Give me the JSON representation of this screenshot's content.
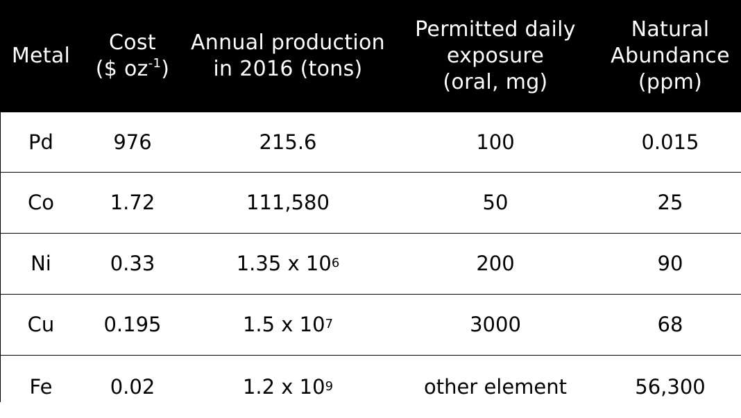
{
  "headers": {
    "metal": "Metal",
    "cost": {
      "line1": "Cost",
      "line2_pre": "($ oz",
      "line2_sup": "-1",
      "line2_post": ")"
    },
    "production": {
      "line1": "Annual production",
      "line2": "in 2016 (tons)"
    },
    "exposure": {
      "line1": "Permitted daily",
      "line2": "exposure",
      "line3": "(oral, mg)"
    },
    "abundance": {
      "line1": "Natural",
      "line2": "Abundance",
      "line3": "(ppm)"
    }
  },
  "rows": [
    {
      "metal": "Pd",
      "cost": "976",
      "production_base": "215.6",
      "production_exp": "",
      "exposure": "100",
      "abundance": "0.015"
    },
    {
      "metal": "Co",
      "cost": "1.72",
      "production_base": "111,580",
      "production_exp": "",
      "exposure": "50",
      "abundance": "25"
    },
    {
      "metal": "Ni",
      "cost": "0.33",
      "production_base": "1.35 x 10",
      "production_exp": "6",
      "exposure": "200",
      "abundance": "90"
    },
    {
      "metal": "Cu",
      "cost": "0.195",
      "production_base": "1.5 x 10",
      "production_exp": "7",
      "exposure": "3000",
      "abundance": "68"
    },
    {
      "metal": "Fe",
      "cost": "0.02",
      "production_base": "1.2 x 10",
      "production_exp": "9",
      "exposure": "other element",
      "abundance": "56,300"
    }
  ],
  "colors": {
    "header_bg": "#000000",
    "header_text": "#ffffff",
    "body_text": "#000000",
    "row_border": "#000000"
  }
}
